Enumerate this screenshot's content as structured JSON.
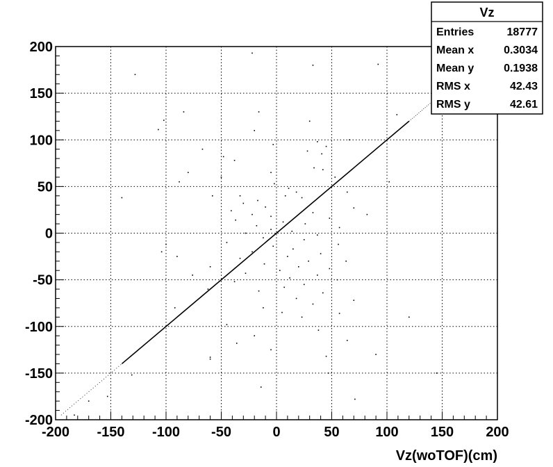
{
  "chart_data": {
    "type": "scatter",
    "title": "",
    "xlabel": "Vz(woTOF)(cm)",
    "ylabel": "",
    "xlim": [
      -200,
      200
    ],
    "ylim": [
      -200,
      200
    ],
    "xticks": [
      "-200",
      "-150",
      "-100",
      "-50",
      "0",
      "50",
      "100",
      "150",
      "200"
    ],
    "yticks": [
      "-200",
      "-150",
      "-100",
      "-50",
      "0",
      "50",
      "100",
      "150",
      "200"
    ],
    "grid": true,
    "legend": "top-right",
    "diagonal": {
      "from": [
        -195,
        -195
      ],
      "to": [
        145,
        145
      ]
    },
    "outliers": [
      [
        -22,
        193
      ],
      [
        33,
        180
      ],
      [
        92,
        181
      ],
      [
        -128,
        170
      ],
      [
        -16,
        130
      ],
      [
        109,
        127
      ],
      [
        -102,
        121
      ],
      [
        -107,
        111
      ],
      [
        -20,
        110
      ],
      [
        37,
        98
      ],
      [
        -3,
        95
      ],
      [
        45,
        93
      ],
      [
        -67,
        90
      ],
      [
        28,
        88
      ],
      [
        41,
        85
      ],
      [
        -38,
        78
      ],
      [
        -88,
        55
      ],
      [
        34,
        70
      ],
      [
        42,
        68
      ],
      [
        -5,
        65
      ],
      [
        53,
        60
      ],
      [
        -80,
        65
      ],
      [
        -50,
        60
      ],
      [
        -2,
        53
      ],
      [
        11,
        48
      ],
      [
        18,
        44
      ],
      [
        64,
        44
      ],
      [
        -33,
        40
      ],
      [
        8,
        40
      ],
      [
        -58,
        40
      ],
      [
        23,
        38
      ],
      [
        -17,
        35
      ],
      [
        -30,
        32
      ],
      [
        -10,
        28
      ],
      [
        70,
        27
      ],
      [
        -41,
        24
      ],
      [
        33,
        22
      ],
      [
        -22,
        20
      ],
      [
        -5,
        18
      ],
      [
        48,
        16
      ],
      [
        -37,
        14
      ],
      [
        6,
        12
      ],
      [
        26,
        10
      ],
      [
        -18,
        8
      ],
      [
        57,
        6
      ],
      [
        -5,
        4
      ],
      [
        14,
        2
      ],
      [
        -28,
        0
      ],
      [
        37,
        -2
      ],
      [
        -12,
        -5
      ],
      [
        25,
        -7
      ],
      [
        -45,
        -10
      ],
      [
        56,
        -12
      ],
      [
        -3,
        -14
      ],
      [
        15,
        -17
      ],
      [
        -22,
        -20
      ],
      [
        40,
        -22
      ],
      [
        -100,
        -12
      ],
      [
        -104,
        -20
      ],
      [
        10,
        -25
      ],
      [
        -33,
        -27
      ],
      [
        29,
        -30
      ],
      [
        63,
        -30
      ],
      [
        -11,
        -33
      ],
      [
        20,
        -36
      ],
      [
        -60,
        -36
      ],
      [
        48,
        -38
      ],
      [
        3,
        -40
      ],
      [
        -28,
        -43
      ],
      [
        37,
        -45
      ],
      [
        -90,
        -25
      ],
      [
        12,
        -48
      ],
      [
        55,
        -50
      ],
      [
        -38,
        -52
      ],
      [
        25,
        -55
      ],
      [
        7,
        -58
      ],
      [
        -16,
        -62
      ],
      [
        42,
        -64
      ],
      [
        18,
        -70
      ],
      [
        33,
        -76
      ],
      [
        70,
        -72
      ],
      [
        -12,
        -80
      ],
      [
        57,
        -86
      ],
      [
        23,
        -90
      ],
      [
        -45,
        -98
      ],
      [
        38,
        -104
      ],
      [
        -20,
        -110
      ],
      [
        64,
        -115
      ],
      [
        -5,
        -125
      ],
      [
        45,
        -132
      ],
      [
        -60,
        -133
      ],
      [
        71,
        -178
      ],
      [
        -14,
        -165
      ],
      [
        47,
        -150
      ],
      [
        -131,
        -152
      ],
      [
        -153,
        -175
      ],
      [
        -183,
        -195
      ],
      [
        -84,
        130
      ],
      [
        -140,
        38
      ],
      [
        90,
        -130
      ],
      [
        145,
        -150
      ],
      [
        -60,
        -135
      ],
      [
        120,
        -90
      ],
      [
        -170,
        -180
      ],
      [
        102,
        55
      ],
      [
        -48,
        82
      ],
      [
        5,
        -85
      ],
      [
        -76,
        -45
      ],
      [
        82,
        20
      ],
      [
        -92,
        -80
      ],
      [
        30,
        120
      ],
      [
        -36,
        -118
      ],
      [
        66,
        100
      ],
      [
        -62,
        -60
      ]
    ]
  },
  "stats_box": {
    "title": "Vz",
    "rows": [
      {
        "label": "Entries",
        "value": "18777"
      },
      {
        "label": "Mean x",
        "value": "0.3034"
      },
      {
        "label": "Mean y",
        "value": "0.1938"
      },
      {
        "label": "RMS x",
        "value": "42.43"
      },
      {
        "label": "RMS y",
        "value": "42.61"
      }
    ]
  }
}
